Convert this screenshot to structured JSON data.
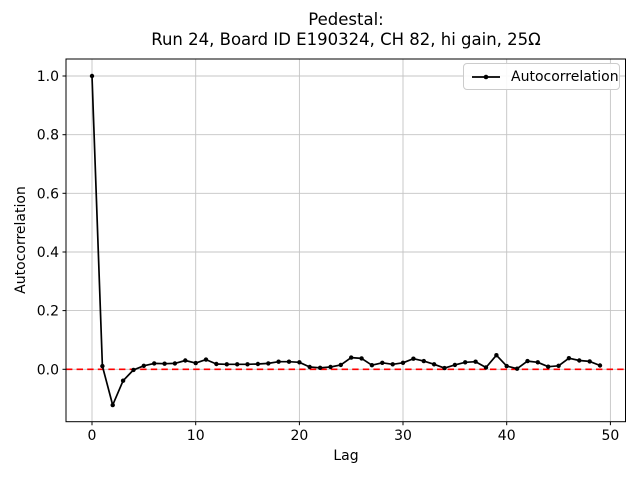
{
  "chart_data": {
    "type": "line",
    "title_lines": [
      "Pedestal:",
      "Run 24, Board ID E190324, CH 82, hi gain, 25Ω"
    ],
    "xlabel": "Lag",
    "ylabel": "Autocorrelation",
    "grid": true,
    "legend_position": "upper right",
    "x_ticks": [
      0,
      10,
      20,
      30,
      40,
      50
    ],
    "y_ticks": [
      0.0,
      0.2,
      0.4,
      0.6,
      0.8,
      1.0
    ],
    "xlim": [
      -2.45,
      51.45
    ],
    "ylim": [
      -0.178,
      1.056
    ],
    "zero_line": {
      "y": 0,
      "color": "#ff0000",
      "style": "dashed"
    },
    "series": [
      {
        "name": "Autocorrelation",
        "color": "#000000",
        "marker": "point",
        "x": [
          0,
          1,
          2,
          3,
          4,
          5,
          6,
          7,
          8,
          9,
          10,
          11,
          12,
          13,
          14,
          15,
          16,
          17,
          18,
          19,
          20,
          21,
          22,
          23,
          24,
          25,
          26,
          27,
          28,
          29,
          30,
          31,
          32,
          33,
          34,
          35,
          36,
          37,
          38,
          39,
          40,
          41,
          42,
          43,
          44,
          45,
          46,
          47,
          48,
          49
        ],
        "y": [
          1.0,
          0.011,
          -0.122,
          -0.039,
          -0.002,
          0.012,
          0.02,
          0.019,
          0.02,
          0.03,
          0.021,
          0.033,
          0.018,
          0.017,
          0.017,
          0.017,
          0.018,
          0.02,
          0.026,
          0.026,
          0.024,
          0.008,
          0.005,
          0.008,
          0.015,
          0.04,
          0.037,
          0.014,
          0.022,
          0.017,
          0.022,
          0.036,
          0.028,
          0.017,
          0.004,
          0.015,
          0.024,
          0.026,
          0.006,
          0.048,
          0.011,
          0.002,
          0.028,
          0.024,
          0.009,
          0.012,
          0.038,
          0.03,
          0.027,
          0.013
        ]
      }
    ]
  },
  "colors": {
    "line": "#000000",
    "marker": "#000000",
    "zero_line": "#ff0000",
    "grid": "#c4c4c4",
    "spine": "#000000",
    "background": "#ffffff",
    "legend_border": "#cccccc",
    "text": "#000000"
  }
}
